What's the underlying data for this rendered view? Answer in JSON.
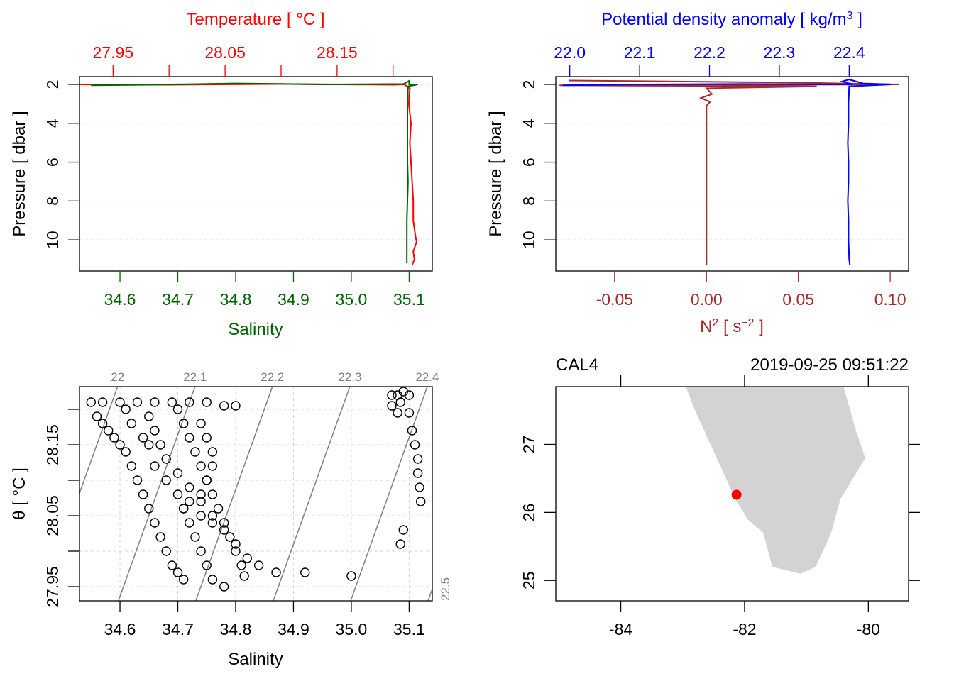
{
  "colors": {
    "temperature": "#ff0000",
    "salinity": "#006400",
    "density": "#0000ff",
    "n2": "#a52a2a",
    "axis": "#000000",
    "grid": "#d3d3d3",
    "isopycnal": "#808080",
    "land": "#d3d3d3",
    "station": "#ff0000"
  },
  "chart_data": [
    {
      "type": "line",
      "panel": "temperature-salinity-profile",
      "top_axis": {
        "label": "Temperature [ °C ]",
        "range": [
          27.92,
          28.235
        ],
        "ticks": [
          "27.95",
          "28.00",
          "28.05",
          "28.10",
          "28.15",
          "28.20"
        ],
        "tick_labels": [
          "27.95",
          "",
          "28.05",
          "",
          "28.15",
          ""
        ]
      },
      "bottom_axis": {
        "label": "Salinity",
        "range": [
          34.53,
          35.14
        ],
        "ticks": [
          "34.6",
          "34.7",
          "34.8",
          "34.9",
          "35.0",
          "35.1"
        ]
      },
      "left_axis": {
        "label": "Pressure [ dbar ]",
        "range": [
          11.6,
          1.6
        ],
        "ticks": [
          "2",
          "4",
          "6",
          "8",
          "10"
        ],
        "reversed": true
      },
      "grid": true,
      "series": [
        {
          "name": "Temperature",
          "axis": "top",
          "points": [
            [
              27.91,
              2.0
            ],
            [
              28.0,
              2.02
            ],
            [
              28.1,
              1.98
            ],
            [
              28.2,
              2.02
            ],
            [
              28.21,
              2.0
            ],
            [
              28.215,
              2.2
            ],
            [
              28.214,
              3.0
            ],
            [
              28.216,
              4.0
            ],
            [
              28.215,
              5.0
            ],
            [
              28.216,
              6.0
            ],
            [
              28.217,
              7.0
            ],
            [
              28.218,
              8.0
            ],
            [
              28.218,
              9.0
            ],
            [
              28.22,
              9.8
            ],
            [
              28.221,
              10.1
            ],
            [
              28.218,
              10.6
            ],
            [
              28.219,
              11.0
            ],
            [
              28.217,
              11.3
            ]
          ]
        },
        {
          "name": "Salinity",
          "axis": "bottom",
          "points": [
            [
              34.55,
              2.05
            ],
            [
              34.65,
              2.02
            ],
            [
              34.8,
              1.95
            ],
            [
              34.95,
              2.0
            ],
            [
              35.09,
              1.98
            ],
            [
              35.1,
              1.82
            ],
            [
              35.1,
              2.0
            ],
            [
              35.115,
              2.0
            ],
            [
              35.098,
              2.1
            ],
            [
              35.097,
              3.0
            ],
            [
              35.097,
              4.0
            ],
            [
              35.097,
              5.0
            ],
            [
              35.097,
              6.0
            ],
            [
              35.098,
              7.0
            ],
            [
              35.097,
              8.0
            ],
            [
              35.096,
              9.0
            ],
            [
              35.096,
              10.0
            ],
            [
              35.096,
              11.0
            ],
            [
              35.096,
              11.2
            ]
          ]
        }
      ]
    },
    {
      "type": "line",
      "panel": "density-n2-profile",
      "top_axis": {
        "label": "Potential density anomaly [ kg/m³ ]",
        "range": [
          21.98,
          22.485
        ],
        "ticks": [
          "22.0",
          "22.1",
          "22.2",
          "22.3",
          "22.4"
        ]
      },
      "bottom_axis": {
        "label": "N² [ s⁻² ]",
        "range": [
          -0.082,
          0.11
        ],
        "ticks": [
          "-0.05",
          "0.00",
          "0.05",
          "0.10"
        ]
      },
      "left_axis": {
        "label": "Pressure [ dbar ]",
        "range": [
          11.6,
          1.6
        ],
        "ticks": [
          "2",
          "4",
          "6",
          "8",
          "10"
        ],
        "reversed": true
      },
      "grid": true,
      "series": [
        {
          "name": "Potential density anomaly",
          "axis": "top",
          "points": [
            [
              21.99,
              2.05
            ],
            [
              22.1,
              2.0
            ],
            [
              22.25,
              1.98
            ],
            [
              22.38,
              2.0
            ],
            [
              22.405,
              2.0
            ],
            [
              22.39,
              1.85
            ],
            [
              22.4,
              1.75
            ],
            [
              22.42,
              1.95
            ],
            [
              22.46,
              2.0
            ],
            [
              22.4,
              2.1
            ],
            [
              22.399,
              3.0
            ],
            [
              22.399,
              4.0
            ],
            [
              22.398,
              5.0
            ],
            [
              22.399,
              6.0
            ],
            [
              22.399,
              7.0
            ],
            [
              22.398,
              8.0
            ],
            [
              22.399,
              9.0
            ],
            [
              22.399,
              10.0
            ],
            [
              22.4,
              11.0
            ],
            [
              22.401,
              11.3
            ]
          ]
        },
        {
          "name": "N²",
          "axis": "bottom",
          "points": [
            [
              -0.075,
              1.8
            ],
            [
              0.04,
              1.9
            ],
            [
              0.105,
              2.0
            ],
            [
              -0.08,
              2.05
            ],
            [
              0.06,
              2.1
            ],
            [
              0.0,
              2.2
            ],
            [
              0.003,
              2.5
            ],
            [
              -0.003,
              2.7
            ],
            [
              0.002,
              2.9
            ],
            [
              0.0,
              3.1
            ],
            [
              0.0,
              5.0
            ],
            [
              0.0,
              8.0
            ],
            [
              0.0,
              11.3
            ]
          ]
        }
      ]
    },
    {
      "type": "scatter",
      "panel": "ts-diagram",
      "x_axis": {
        "label": "Salinity",
        "range": [
          34.53,
          35.14
        ],
        "ticks": [
          "34.6",
          "34.7",
          "34.8",
          "34.9",
          "35.0",
          "35.1"
        ]
      },
      "y_axis": {
        "label": "θ [ °C ]",
        "range": [
          27.93,
          28.232
        ],
        "ticks": [
          "27.95",
          "28.00",
          "28.05",
          "28.10",
          "28.15",
          "28.20"
        ],
        "tick_labels": [
          "27.95",
          "",
          "28.05",
          "",
          "28.15",
          ""
        ]
      },
      "grid": true,
      "isopycnals": [
        {
          "label": "22",
          "sigma": 22.0
        },
        {
          "label": "22.1",
          "sigma": 22.1
        },
        {
          "label": "22.2",
          "sigma": 22.2
        },
        {
          "label": "22.3",
          "sigma": 22.3
        },
        {
          "label": "22.4",
          "sigma": 22.4
        },
        {
          "label": "22.5",
          "sigma": 22.5
        }
      ],
      "points": [
        [
          34.55,
          28.21
        ],
        [
          34.57,
          28.21
        ],
        [
          34.6,
          28.21
        ],
        [
          34.63,
          28.21
        ],
        [
          34.66,
          28.21
        ],
        [
          34.69,
          28.21
        ],
        [
          34.72,
          28.21
        ],
        [
          34.75,
          28.21
        ],
        [
          34.78,
          28.205
        ],
        [
          34.8,
          28.205
        ],
        [
          34.56,
          28.19
        ],
        [
          34.57,
          28.18
        ],
        [
          34.58,
          28.17
        ],
        [
          34.59,
          28.16
        ],
        [
          34.6,
          28.15
        ],
        [
          34.61,
          28.14
        ],
        [
          34.62,
          28.12
        ],
        [
          34.63,
          28.1
        ],
        [
          34.64,
          28.08
        ],
        [
          34.65,
          28.06
        ],
        [
          34.66,
          28.04
        ],
        [
          34.67,
          28.02
        ],
        [
          34.68,
          28.0
        ],
        [
          34.69,
          27.98
        ],
        [
          34.7,
          27.97
        ],
        [
          34.71,
          27.96
        ],
        [
          34.61,
          28.2
        ],
        [
          34.62,
          28.18
        ],
        [
          34.64,
          28.16
        ],
        [
          34.65,
          28.15
        ],
        [
          34.66,
          28.12
        ],
        [
          34.68,
          28.1
        ],
        [
          34.7,
          28.08
        ],
        [
          34.71,
          28.06
        ],
        [
          34.72,
          28.04
        ],
        [
          34.73,
          28.02
        ],
        [
          34.74,
          28.0
        ],
        [
          34.75,
          27.98
        ],
        [
          34.76,
          27.96
        ],
        [
          34.78,
          27.95
        ],
        [
          34.65,
          28.19
        ],
        [
          34.66,
          28.17
        ],
        [
          34.67,
          28.15
        ],
        [
          34.68,
          28.13
        ],
        [
          34.7,
          28.11
        ],
        [
          34.72,
          28.09
        ],
        [
          34.74,
          28.07
        ],
        [
          34.76,
          28.05
        ],
        [
          34.78,
          28.03
        ],
        [
          34.8,
          28.01
        ],
        [
          34.82,
          27.99
        ],
        [
          34.84,
          27.98
        ],
        [
          34.87,
          27.97
        ],
        [
          34.92,
          27.97
        ],
        [
          35.0,
          27.965
        ],
        [
          34.7,
          28.2
        ],
        [
          34.71,
          28.18
        ],
        [
          34.72,
          28.16
        ],
        [
          34.73,
          28.14
        ],
        [
          34.74,
          28.12
        ],
        [
          34.75,
          28.1
        ],
        [
          34.76,
          28.08
        ],
        [
          34.77,
          28.06
        ],
        [
          34.78,
          28.04
        ],
        [
          34.79,
          28.02
        ],
        [
          34.8,
          28.0
        ],
        [
          34.81,
          27.98
        ],
        [
          34.815,
          27.965
        ],
        [
          34.74,
          28.18
        ],
        [
          34.75,
          28.16
        ],
        [
          34.76,
          28.14
        ],
        [
          34.76,
          28.12
        ],
        [
          34.75,
          28.1
        ],
        [
          34.74,
          28.08
        ],
        [
          34.72,
          28.07
        ],
        [
          34.71,
          28.06
        ],
        [
          34.74,
          28.05
        ],
        [
          34.76,
          28.04
        ],
        [
          35.07,
          28.22
        ],
        [
          35.08,
          28.22
        ],
        [
          35.09,
          28.225
        ],
        [
          35.1,
          28.22
        ],
        [
          35.085,
          28.21
        ],
        [
          35.08,
          28.195
        ],
        [
          35.07,
          28.205
        ],
        [
          35.1,
          28.195
        ],
        [
          35.105,
          28.17
        ],
        [
          35.11,
          28.15
        ],
        [
          35.115,
          28.13
        ],
        [
          35.115,
          28.11
        ],
        [
          35.118,
          28.09
        ],
        [
          35.12,
          28.07
        ],
        [
          35.09,
          28.03
        ],
        [
          35.085,
          28.01
        ]
      ]
    },
    {
      "type": "map",
      "panel": "station-map",
      "station_label": "CAL4",
      "timestamp": "2019-09-25 09:51:22",
      "x_axis": {
        "range": [
          -85.05,
          -79.35
        ],
        "ticks": [
          "-84",
          "-82",
          "-80"
        ]
      },
      "y_axis": {
        "range": [
          24.7,
          27.85
        ],
        "ticks": [
          "25",
          "26",
          "27"
        ]
      },
      "land": [
        [
          -82.95,
          27.85
        ],
        [
          -82.8,
          27.5
        ],
        [
          -82.65,
          27.2
        ],
        [
          -82.45,
          26.8
        ],
        [
          -82.3,
          26.5
        ],
        [
          -82.15,
          26.2
        ],
        [
          -81.95,
          25.9
        ],
        [
          -81.7,
          25.7
        ],
        [
          -81.55,
          25.2
        ],
        [
          -81.1,
          25.1
        ],
        [
          -80.85,
          25.2
        ],
        [
          -80.6,
          25.7
        ],
        [
          -80.45,
          26.2
        ],
        [
          -80.05,
          26.8
        ],
        [
          -80.2,
          27.2
        ],
        [
          -80.4,
          27.85
        ]
      ],
      "station": {
        "lon": -82.13,
        "lat": 26.26
      }
    }
  ]
}
